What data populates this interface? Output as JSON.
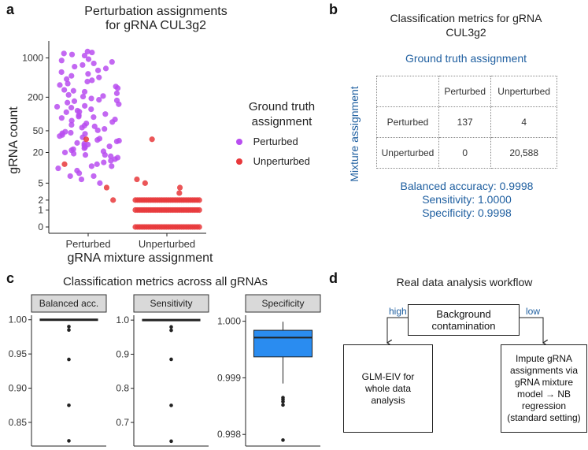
{
  "panels": {
    "a": {
      "letter": "a",
      "title_line1": "Perturbation assignments",
      "title_line2": "for gRNA CUL3g2",
      "legend_title_line1": "Ground truth",
      "legend_title_line2": "assignment",
      "legend_items": [
        {
          "label": "Perturbed",
          "color": "#b84ef0"
        },
        {
          "label": "Unperturbed",
          "color": "#e8383b"
        }
      ]
    },
    "b": {
      "letter": "b",
      "title_line1": "Classification metrics for gRNA",
      "title_line2": "CUL3g2",
      "col_header": "Ground truth assignment",
      "row_header": "Mixture assignment",
      "columns": [
        "Perturbed",
        "Unperturbed"
      ],
      "rows": [
        {
          "label": "Perturbed",
          "values": [
            "137",
            "4"
          ]
        },
        {
          "label": "Unperturbed",
          "values": [
            "0",
            "20,588"
          ]
        }
      ],
      "balanced_accuracy": "Balanced accuracy: 0.9998",
      "sensitivity": "Sensitivity: 1.0000",
      "specificity": "Specificity: 0.9998"
    },
    "c": {
      "letter": "c",
      "title": "Classification metrics across all gRNAs"
    },
    "d": {
      "letter": "d",
      "title": "Real data analysis workflow",
      "top_box_line1": "Background",
      "top_box_line2": "contamination",
      "high_label": "high",
      "low_label": "low",
      "left_box_lines": [
        "GLM-EIV for",
        "whole data",
        "analysis"
      ],
      "right_box_lines": [
        "Impute gRNA",
        "assignments via",
        "gRNA mixture",
        "model → NB",
        "regression",
        "(standard setting)"
      ]
    }
  },
  "chart_data": [
    {
      "type": "scatter",
      "name": "perturbation-assignments",
      "title": "Perturbation assignments for gRNA CUL3g2",
      "xlabel": "gRNA mixture assignment",
      "ylabel": "gRNA count",
      "categories": [
        "Perturbed",
        "Unperturbed"
      ],
      "y_scale": "pseudo-log",
      "y_ticks": [
        0,
        1,
        2,
        5,
        20,
        50,
        200,
        1000
      ],
      "y_tick_labels": [
        "0",
        "1",
        "2",
        "5",
        "20",
        "50",
        "200",
        "1000"
      ],
      "ylim": [
        0,
        2000
      ],
      "series": [
        {
          "name": "Perturbed",
          "color": "#b84ef0",
          "points": [
            {
              "x": "Perturbed",
              "y": 1300
            },
            {
              "x": "Perturbed",
              "y": 1250
            },
            {
              "x": "Perturbed",
              "y": 1200
            },
            {
              "x": "Perturbed",
              "y": 1150
            },
            {
              "x": "Perturbed",
              "y": 1100
            },
            {
              "x": "Perturbed",
              "y": 950
            },
            {
              "x": "Perturbed",
              "y": 900
            },
            {
              "x": "Perturbed",
              "y": 850
            },
            {
              "x": "Perturbed",
              "y": 800
            },
            {
              "x": "Perturbed",
              "y": 750
            },
            {
              "x": "Perturbed",
              "y": 700
            },
            {
              "x": "Perturbed",
              "y": 650
            },
            {
              "x": "Perturbed",
              "y": 600
            },
            {
              "x": "Perturbed",
              "y": 560
            },
            {
              "x": "Perturbed",
              "y": 520
            },
            {
              "x": "Perturbed",
              "y": 480
            },
            {
              "x": "Perturbed",
              "y": 450
            },
            {
              "x": "Perturbed",
              "y": 420
            },
            {
              "x": "Perturbed",
              "y": 400
            },
            {
              "x": "Perturbed",
              "y": 380
            },
            {
              "x": "Perturbed",
              "y": 350
            },
            {
              "x": "Perturbed",
              "y": 330
            },
            {
              "x": "Perturbed",
              "y": 310
            },
            {
              "x": "Perturbed",
              "y": 290
            },
            {
              "x": "Perturbed",
              "y": 270
            },
            {
              "x": "Perturbed",
              "y": 250
            },
            {
              "x": "Perturbed",
              "y": 235
            },
            {
              "x": "Perturbed",
              "y": 220
            },
            {
              "x": "Perturbed",
              "y": 205
            },
            {
              "x": "Perturbed",
              "y": 190
            },
            {
              "x": "Perturbed",
              "y": 180
            },
            {
              "x": "Perturbed",
              "y": 170
            },
            {
              "x": "Perturbed",
              "y": 160
            },
            {
              "x": "Perturbed",
              "y": 150
            },
            {
              "x": "Perturbed",
              "y": 140
            },
            {
              "x": "Perturbed",
              "y": 130
            },
            {
              "x": "Perturbed",
              "y": 122
            },
            {
              "x": "Perturbed",
              "y": 115
            },
            {
              "x": "Perturbed",
              "y": 108
            },
            {
              "x": "Perturbed",
              "y": 100
            },
            {
              "x": "Perturbed",
              "y": 95
            },
            {
              "x": "Perturbed",
              "y": 90
            },
            {
              "x": "Perturbed",
              "y": 85
            },
            {
              "x": "Perturbed",
              "y": 80
            },
            {
              "x": "Perturbed",
              "y": 76
            },
            {
              "x": "Perturbed",
              "y": 72
            },
            {
              "x": "Perturbed",
              "y": 68
            },
            {
              "x": "Perturbed",
              "y": 64
            },
            {
              "x": "Perturbed",
              "y": 60
            },
            {
              "x": "Perturbed",
              "y": 57
            },
            {
              "x": "Perturbed",
              "y": 54
            },
            {
              "x": "Perturbed",
              "y": 51
            },
            {
              "x": "Perturbed",
              "y": 48
            },
            {
              "x": "Perturbed",
              "y": 46
            },
            {
              "x": "Perturbed",
              "y": 44
            },
            {
              "x": "Perturbed",
              "y": 42
            },
            {
              "x": "Perturbed",
              "y": 40
            },
            {
              "x": "Perturbed",
              "y": 38
            },
            {
              "x": "Perturbed",
              "y": 36
            },
            {
              "x": "Perturbed",
              "y": 34
            },
            {
              "x": "Perturbed",
              "y": 32
            },
            {
              "x": "Perturbed",
              "y": 30
            },
            {
              "x": "Perturbed",
              "y": 29
            },
            {
              "x": "Perturbed",
              "y": 28
            },
            {
              "x": "Perturbed",
              "y": 27
            },
            {
              "x": "Perturbed",
              "y": 26
            },
            {
              "x": "Perturbed",
              "y": 25
            },
            {
              "x": "Perturbed",
              "y": 24
            },
            {
              "x": "Perturbed",
              "y": 23
            },
            {
              "x": "Perturbed",
              "y": 22
            },
            {
              "x": "Perturbed",
              "y": 21
            },
            {
              "x": "Perturbed",
              "y": 20
            },
            {
              "x": "Perturbed",
              "y": 19
            },
            {
              "x": "Perturbed",
              "y": 18
            },
            {
              "x": "Perturbed",
              "y": 17
            },
            {
              "x": "Perturbed",
              "y": 16
            },
            {
              "x": "Perturbed",
              "y": 15
            },
            {
              "x": "Perturbed",
              "y": 14
            },
            {
              "x": "Perturbed",
              "y": 13
            },
            {
              "x": "Perturbed",
              "y": 12
            },
            {
              "x": "Perturbed",
              "y": 11
            },
            {
              "x": "Perturbed",
              "y": 10
            },
            {
              "x": "Perturbed",
              "y": 9
            },
            {
              "x": "Perturbed",
              "y": 8
            },
            {
              "x": "Perturbed",
              "y": 7
            },
            {
              "x": "Perturbed",
              "y": 6
            },
            {
              "x": "Perturbed",
              "y": 5
            },
            {
              "x": "Perturbed",
              "y": 210
            },
            {
              "x": "Perturbed",
              "y": 260
            },
            {
              "x": "Perturbed",
              "y": 175
            },
            {
              "x": "Perturbed",
              "y": 135
            },
            {
              "x": "Perturbed",
              "y": 110
            },
            {
              "x": "Perturbed",
              "y": 88
            },
            {
              "x": "Perturbed",
              "y": 62
            },
            {
              "x": "Perturbed",
              "y": 45
            },
            {
              "x": "Perturbed",
              "y": 33
            },
            {
              "x": "Perturbed",
              "y": 18
            },
            {
              "x": "Perturbed",
              "y": 11
            },
            {
              "x": "Perturbed",
              "y": 7
            }
          ]
        },
        {
          "name": "Unperturbed",
          "color": "#e8383b",
          "points": [
            {
              "x": "Perturbed",
              "y": 35
            },
            {
              "x": "Perturbed",
              "y": 12
            },
            {
              "x": "Perturbed",
              "y": 4
            },
            {
              "x": "Perturbed",
              "y": 2
            },
            {
              "x": "Unperturbed",
              "y": 35
            },
            {
              "x": "Unperturbed",
              "y": 6
            },
            {
              "x": "Unperturbed",
              "y": 5
            },
            {
              "x": "Unperturbed",
              "y": 4
            },
            {
              "x": "Unperturbed",
              "y": 3
            },
            {
              "x": "Unperturbed",
              "y": 2
            },
            {
              "x": "Unperturbed",
              "y": 1
            },
            {
              "x": "Unperturbed",
              "y": 0
            }
          ]
        }
      ]
    },
    {
      "type": "box",
      "name": "balanced-accuracy",
      "title": "Balanced acc.",
      "ylim": [
        0.82,
        1.002
      ],
      "y_ticks": [
        0.85,
        0.9,
        0.95,
        1.0
      ],
      "y_tick_labels": [
        "0.85",
        "0.90",
        "0.95",
        "1.00"
      ],
      "median": 1.0,
      "q1": 1.0,
      "q3": 1.0,
      "whisker_low": 1.0,
      "whisker_high": 1.0,
      "outliers": [
        0.99,
        0.985,
        0.942,
        0.875,
        0.823
      ]
    },
    {
      "type": "box",
      "name": "sensitivity",
      "title": "Sensitivity",
      "ylim": [
        0.64,
        1.005
      ],
      "y_ticks": [
        0.7,
        0.8,
        0.9,
        1.0
      ],
      "y_tick_labels": [
        "0.7",
        "0.8",
        "0.9",
        "1.0"
      ],
      "median": 1.0,
      "q1": 1.0,
      "q3": 1.0,
      "whisker_low": 1.0,
      "whisker_high": 1.0,
      "outliers": [
        0.98,
        0.97,
        0.885,
        0.75,
        0.645
      ]
    },
    {
      "type": "box",
      "name": "specificity",
      "title": "Specificity",
      "ylim": [
        0.99785,
        1.00005
      ],
      "y_ticks": [
        0.998,
        0.999,
        1.0
      ],
      "y_tick_labels": [
        "0.998",
        "0.999",
        "1.000"
      ],
      "color": "#2a8cf0",
      "median": 0.99971,
      "q1": 0.99937,
      "q3": 0.99984,
      "whisker_low": 0.9989,
      "whisker_high": 0.99999,
      "outliers": [
        0.99865,
        0.99862,
        0.99858,
        0.99852,
        0.9979
      ]
    }
  ]
}
